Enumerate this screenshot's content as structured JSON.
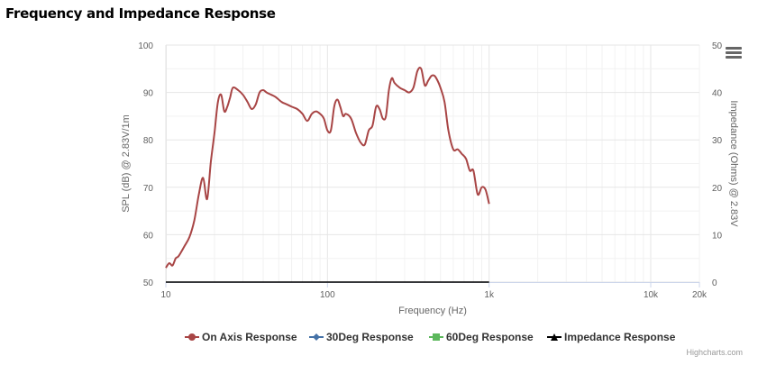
{
  "title": "Frequency and Impedance Response",
  "credits": "Highcharts.com",
  "menu_icon": "hamburger-menu-icon",
  "colors": {
    "on_axis": "#A84545",
    "deg30": "#4572A7",
    "deg60": "#5CB85C",
    "impedance": "#000000",
    "grid": "#e6e6e6",
    "axis_line": "#ccd6eb"
  },
  "legend": [
    {
      "label": "On Axis Response",
      "symbol": "circle",
      "color": "#A84545"
    },
    {
      "label": "30Deg Response",
      "symbol": "diamond",
      "color": "#4572A7"
    },
    {
      "label": "60Deg Response",
      "symbol": "square",
      "color": "#5CB85C"
    },
    {
      "label": "Impedance Response",
      "symbol": "triangle",
      "color": "#000000"
    }
  ],
  "chart_data": {
    "type": "line",
    "title": "Frequency and Impedance Response",
    "xlabel": "Frequency (Hz)",
    "ylabel": "SPL (dB) @ 2.83V/1m",
    "y2label": "Impedance (Ohms) @ 2.83V",
    "xscale": "log",
    "xlim": [
      10,
      20000
    ],
    "ylim": [
      50,
      100
    ],
    "y2lim": [
      0,
      50
    ],
    "grid": true,
    "legend_position": "bottom",
    "x_ticks": [
      {
        "value": 10,
        "label": "10"
      },
      {
        "value": 100,
        "label": "100"
      },
      {
        "value": 1000,
        "label": "1k"
      },
      {
        "value": 10000,
        "label": "10k"
      },
      {
        "value": 20000,
        "label": "20k"
      }
    ],
    "y_ticks": [
      "50",
      "60",
      "70",
      "80",
      "90",
      "100"
    ],
    "y2_ticks": [
      "0",
      "10",
      "20",
      "30",
      "40",
      "50"
    ],
    "series": [
      {
        "name": "On Axis Response",
        "axis": "left",
        "x": [
          10,
          10.5,
          11,
          11.5,
          12,
          13,
          14,
          15,
          16,
          17,
          18,
          19,
          20,
          21,
          22,
          23,
          24,
          25,
          26,
          28,
          30,
          32,
          34,
          36,
          38,
          40,
          42,
          45,
          48,
          52,
          56,
          60,
          65,
          70,
          75,
          80,
          85,
          90,
          95,
          100,
          105,
          110,
          115,
          120,
          125,
          130,
          140,
          150,
          160,
          170,
          180,
          190,
          200,
          210,
          220,
          230,
          240,
          250,
          260,
          280,
          300,
          320,
          340,
          360,
          380,
          400,
          420,
          440,
          460,
          480,
          500,
          530,
          560,
          600,
          640,
          680,
          720,
          760,
          800,
          850,
          900,
          950,
          1000
        ],
        "y": [
          53,
          54,
          53.5,
          55,
          55.5,
          57.5,
          59.5,
          63,
          68.5,
          72,
          67.5,
          75.5,
          81.5,
          88,
          89.5,
          86,
          87,
          89,
          91,
          90.5,
          89.5,
          88,
          86.5,
          87.5,
          90,
          90.5,
          90,
          89.5,
          89,
          88,
          87.5,
          87,
          86.5,
          85.5,
          84,
          85.5,
          86,
          85.5,
          84.5,
          82,
          82,
          87,
          88.5,
          87,
          85,
          85.5,
          84.5,
          81.5,
          79.5,
          79,
          82,
          83,
          87,
          86.5,
          84.5,
          85,
          90.5,
          93,
          92,
          91,
          90.5,
          90,
          91,
          94.5,
          95,
          91.5,
          92.5,
          93.5,
          93.5,
          92.5,
          91,
          88,
          82,
          78,
          78,
          77,
          76,
          73.5,
          73.5,
          68.5,
          70,
          69.5,
          66.5
        ]
      },
      {
        "name": "30Deg Response",
        "axis": "left",
        "x": [],
        "y": []
      },
      {
        "name": "60Deg Response",
        "axis": "left",
        "x": [],
        "y": []
      },
      {
        "name": "Impedance Response",
        "axis": "right",
        "x": [
          10,
          1000
        ],
        "y": [
          0,
          0
        ]
      }
    ]
  }
}
